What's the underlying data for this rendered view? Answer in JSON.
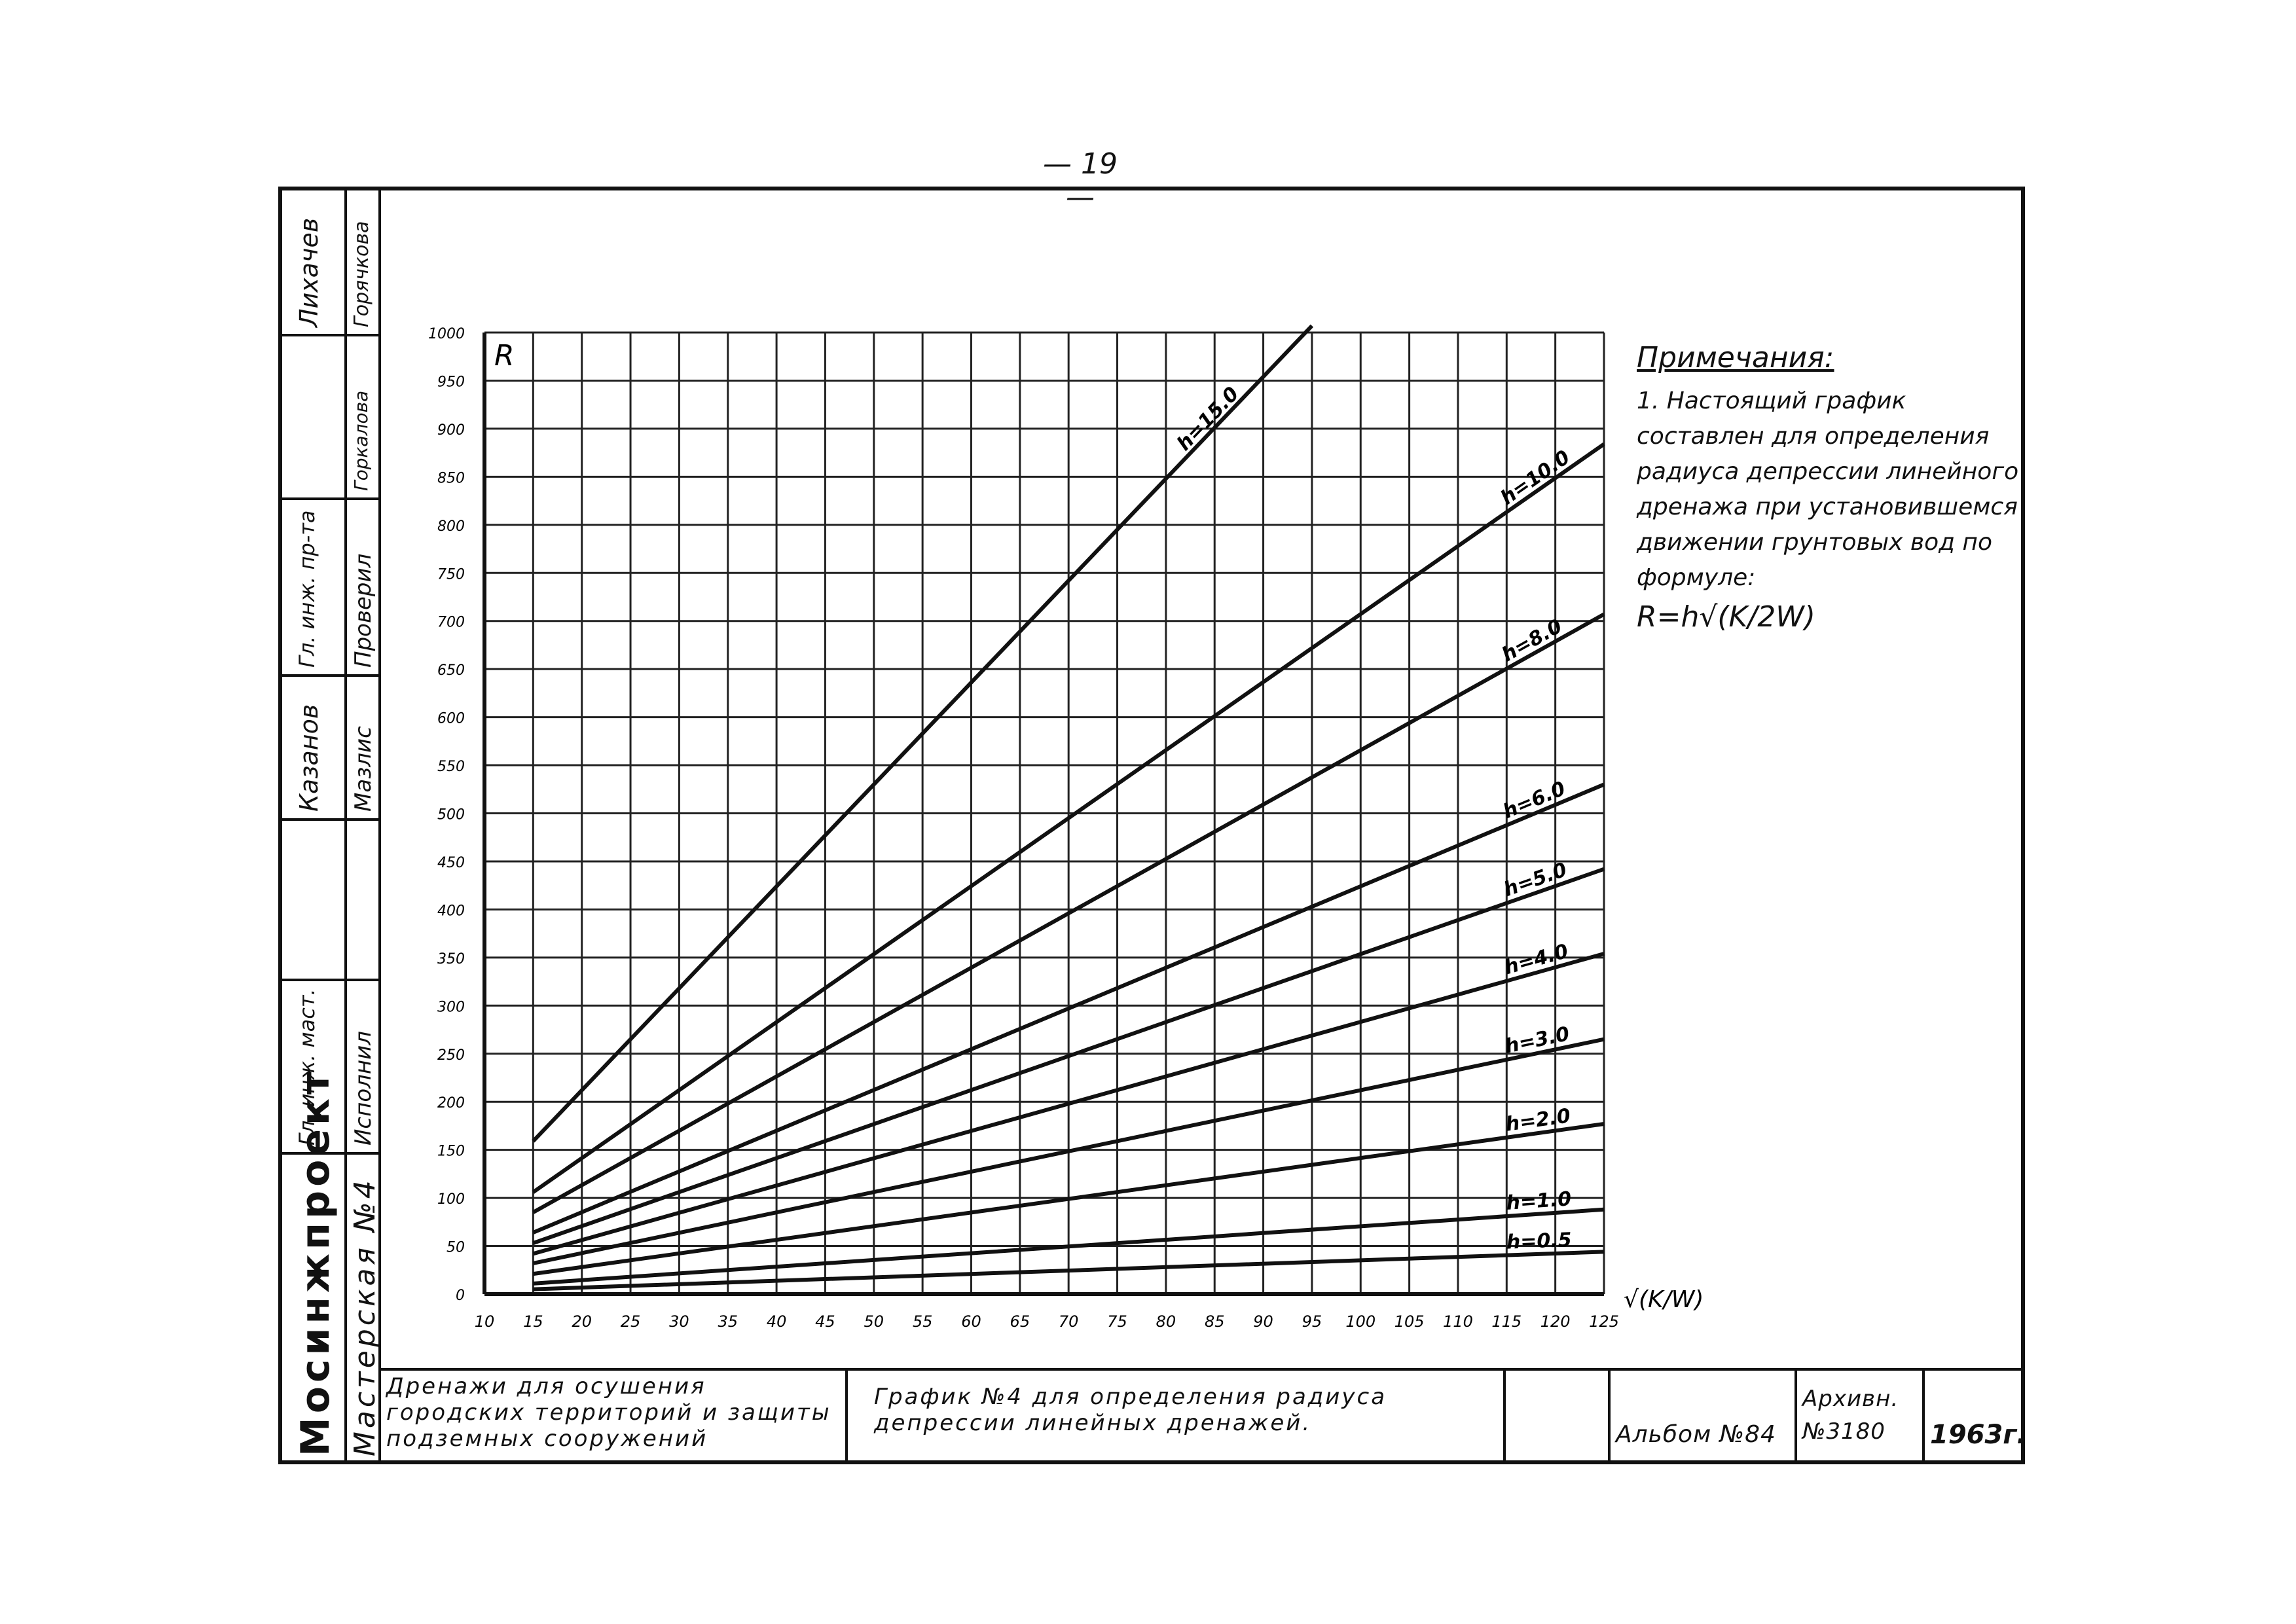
{
  "page_number": "— 19 —",
  "stamp": {
    "org": "Мосинжпроект",
    "workshop": "Мастерская №4",
    "roles": [
      {
        "role": "Гл. инж. маст.",
        "duty": "Исполнил"
      },
      {
        "role": "Гл. инж. пр-та",
        "duty": "Проверил"
      }
    ],
    "names": [
      "Лихачев",
      "Горячкова",
      "Горкалова",
      "Казанов",
      "Мазлис"
    ]
  },
  "title_block": {
    "subject": "Дренажи для осушения городских территорий и защиты подземных сооружений",
    "drawing_title": "График №4 для определения радиуса депрессии линейных дренажей.",
    "album": "Альбом №84",
    "archive": "Архивн. №3180",
    "year": "1963г."
  },
  "notes": {
    "heading": "Примечания:",
    "text": "1. Настоящий график составлен для определения радиуса депрессии линейного дренажа при установившемся движении грунтовых вод по формуле:",
    "formula": "R=h√(K/2W)"
  },
  "chart_data": {
    "type": "line",
    "ylabel": "R",
    "xlabel": "√(K/W)",
    "xlim": [
      10,
      125
    ],
    "ylim": [
      0,
      1000
    ],
    "x_ticks": [
      "10",
      "15",
      "20",
      "25",
      "30",
      "35",
      "40",
      "45",
      "50",
      "55",
      "60",
      "65",
      "70",
      "75",
      "80",
      "85",
      "90",
      "95",
      "100",
      "105",
      "110",
      "115",
      "120",
      "125"
    ],
    "y_ticks": [
      "0",
      "50",
      "100",
      "150",
      "200",
      "250",
      "300",
      "350",
      "400",
      "450",
      "500",
      "550",
      "600",
      "650",
      "700",
      "750",
      "800",
      "850",
      "900",
      "950",
      "1000"
    ],
    "grid": true,
    "series": [
      {
        "name": "h=15.0",
        "x": [
          15,
          95
        ],
        "y": [
          159,
          1007
        ]
      },
      {
        "name": "h=10.0",
        "x": [
          15,
          125
        ],
        "y": [
          106,
          884
        ]
      },
      {
        "name": "h=8.0",
        "x": [
          15,
          125
        ],
        "y": [
          85,
          707
        ]
      },
      {
        "name": "h=6.0",
        "x": [
          15,
          125
        ],
        "y": [
          64,
          530
        ]
      },
      {
        "name": "h=5.0",
        "x": [
          15,
          125
        ],
        "y": [
          53,
          442
        ]
      },
      {
        "name": "h=4.0",
        "x": [
          15,
          125
        ],
        "y": [
          42,
          354
        ]
      },
      {
        "name": "h=3.0",
        "x": [
          15,
          125
        ],
        "y": [
          32,
          265
        ]
      },
      {
        "name": "h=2.0",
        "x": [
          15,
          125
        ],
        "y": [
          21,
          177
        ]
      },
      {
        "name": "h=1.0",
        "x": [
          15,
          125
        ],
        "y": [
          11,
          88
        ]
      },
      {
        "name": "h=0.5",
        "x": [
          15,
          125
        ],
        "y": [
          5,
          44
        ]
      }
    ]
  }
}
